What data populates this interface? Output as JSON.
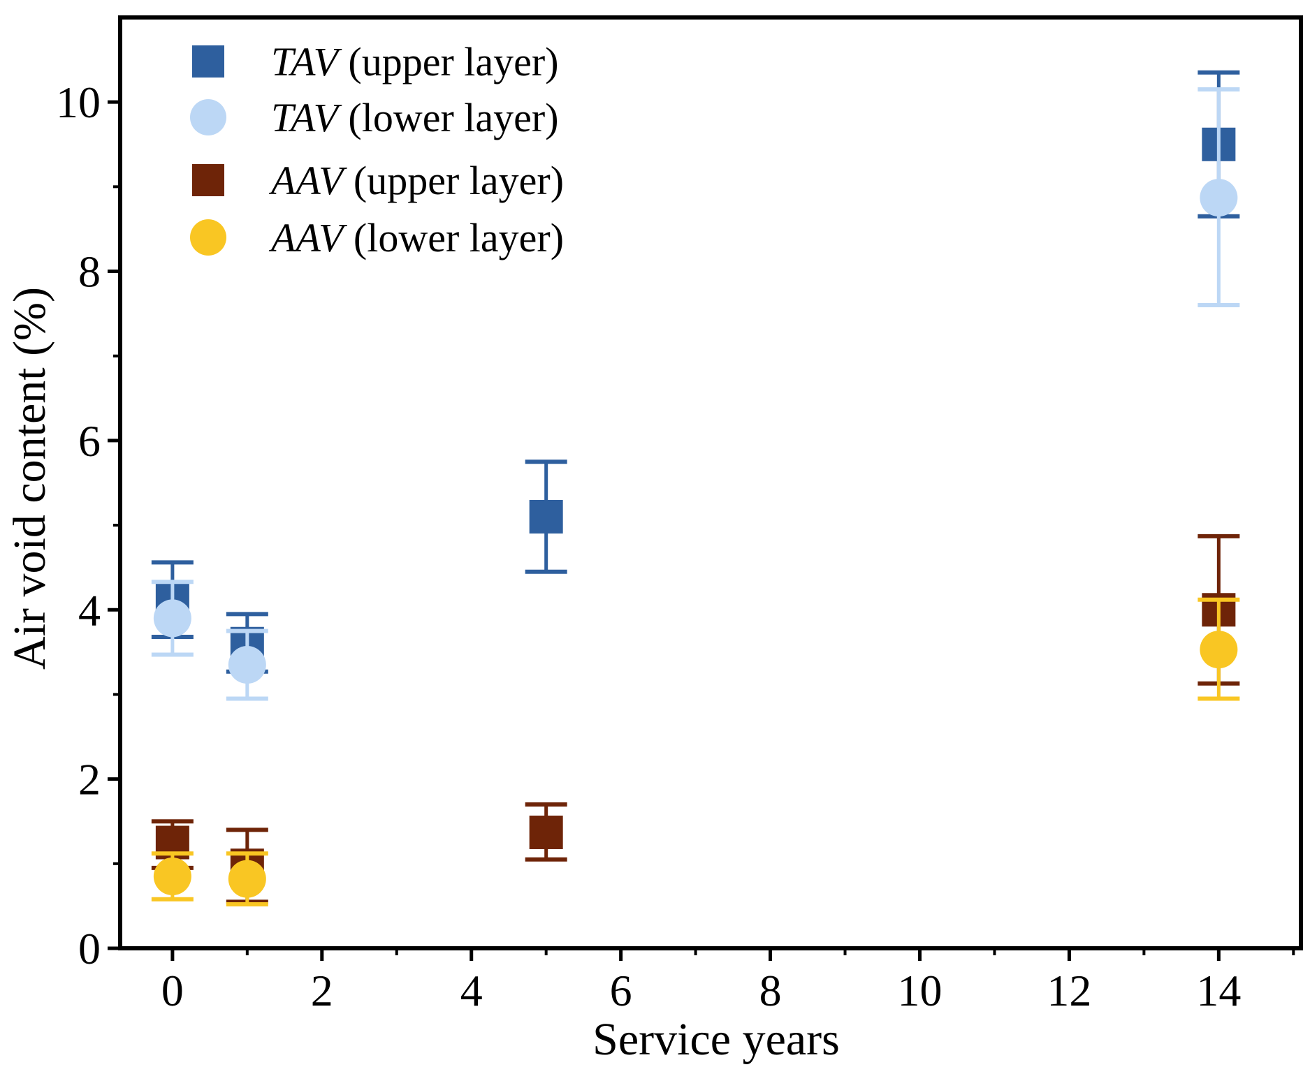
{
  "chart_data": {
    "type": "scatter",
    "title": "",
    "xlabel": "Service years",
    "ylabel": "Air void content (%)",
    "xlim": [
      -0.7,
      15.1
    ],
    "ylim": [
      0,
      11
    ],
    "xticks": [
      0,
      2,
      4,
      6,
      8,
      10,
      12,
      14
    ],
    "yticks": [
      0,
      2,
      4,
      6,
      8,
      10
    ],
    "grid": false,
    "legend_position": "top-left",
    "error_bars": true,
    "series": [
      {
        "name_italic": "TAV",
        "name_rest": " (upper layer)",
        "marker": "square",
        "color": "#2e5f9e",
        "points": [
          {
            "x": 0,
            "y": 4.12,
            "err_low": 3.68,
            "err_high": 4.56
          },
          {
            "x": 1,
            "y": 3.6,
            "err_low": 3.27,
            "err_high": 3.95
          },
          {
            "x": 5,
            "y": 5.1,
            "err_low": 4.45,
            "err_high": 5.75
          },
          {
            "x": 14,
            "y": 9.5,
            "err_low": 8.65,
            "err_high": 10.35
          }
        ]
      },
      {
        "name_italic": "TAV",
        "name_rest": " (lower layer)",
        "marker": "circle",
        "color": "#bcd7f5",
        "points": [
          {
            "x": 0,
            "y": 3.9,
            "err_low": 3.47,
            "err_high": 4.33
          },
          {
            "x": 1,
            "y": 3.35,
            "err_low": 2.95,
            "err_high": 3.75
          },
          {
            "x": 14,
            "y": 8.87,
            "err_low": 7.6,
            "err_high": 10.15
          }
        ]
      },
      {
        "name_italic": "AAV",
        "name_rest": " (upper layer)",
        "marker": "square",
        "color": "#6e2408",
        "points": [
          {
            "x": 0,
            "y": 1.25,
            "err_low": 0.95,
            "err_high": 1.5
          },
          {
            "x": 1,
            "y": 0.98,
            "err_low": 0.55,
            "err_high": 1.4
          },
          {
            "x": 5,
            "y": 1.37,
            "err_low": 1.05,
            "err_high": 1.7
          },
          {
            "x": 14,
            "y": 4.0,
            "err_low": 3.13,
            "err_high": 4.87
          }
        ]
      },
      {
        "name_italic": "AAV",
        "name_rest": " (lower layer)",
        "marker": "circle",
        "color": "#f9c623",
        "points": [
          {
            "x": 0,
            "y": 0.85,
            "err_low": 0.58,
            "err_high": 1.12
          },
          {
            "x": 1,
            "y": 0.82,
            "err_low": 0.52,
            "err_high": 1.12
          },
          {
            "x": 14,
            "y": 3.53,
            "err_low": 2.95,
            "err_high": 4.12
          }
        ]
      }
    ]
  }
}
